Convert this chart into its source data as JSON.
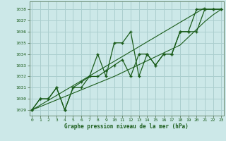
{
  "title": "Graphe pression niveau de la mer (hPa)",
  "xlabel": "Graphe pression niveau de la mer (hPa)",
  "background_color": "#cce8e8",
  "grid_color": "#aacece",
  "line_color": "#1a5c1a",
  "x_values": [
    0,
    1,
    2,
    3,
    4,
    5,
    6,
    7,
    8,
    9,
    10,
    11,
    12,
    13,
    14,
    15,
    16,
    17,
    18,
    19,
    20,
    21,
    22,
    23
  ],
  "series1": [
    1029.0,
    1030.0,
    1030.0,
    1031.0,
    1029.0,
    1031.0,
    1031.0,
    1032.0,
    1034.0,
    1032.0,
    1035.0,
    1035.0,
    1036.0,
    1032.0,
    1034.0,
    1033.0,
    1034.0,
    1034.0,
    1036.0,
    1036.0,
    1038.0,
    1038.0,
    1038.0,
    1038.0
  ],
  "series2": [
    1029.0,
    1030.0,
    1030.0,
    1031.0,
    1029.0,
    1031.0,
    1031.5,
    1032.0,
    1032.0,
    1032.5,
    1033.0,
    1033.5,
    1032.0,
    1034.0,
    1034.0,
    1033.0,
    1034.0,
    1034.0,
    1036.0,
    1036.0,
    1036.0,
    1038.0,
    1038.0,
    1038.0
  ],
  "trend1": [
    1029.0,
    1029.43,
    1029.87,
    1030.3,
    1030.74,
    1031.17,
    1031.61,
    1032.04,
    1032.48,
    1032.91,
    1033.35,
    1033.78,
    1034.22,
    1034.65,
    1035.09,
    1035.52,
    1035.96,
    1036.39,
    1036.83,
    1037.26,
    1037.7,
    1038.13,
    1038.0,
    1038.0
  ],
  "trend2": [
    1029.0,
    1029.3,
    1029.6,
    1029.9,
    1030.2,
    1030.5,
    1030.8,
    1031.1,
    1031.4,
    1031.7,
    1032.0,
    1032.35,
    1032.7,
    1033.05,
    1033.4,
    1033.75,
    1034.1,
    1034.45,
    1034.8,
    1035.5,
    1036.2,
    1036.9,
    1037.5,
    1038.0
  ],
  "ylim": [
    1028.5,
    1038.7
  ],
  "yticks": [
    1029,
    1030,
    1031,
    1032,
    1033,
    1034,
    1035,
    1036,
    1037,
    1038
  ],
  "xticks": [
    0,
    1,
    2,
    3,
    4,
    5,
    6,
    7,
    8,
    9,
    10,
    11,
    12,
    13,
    14,
    15,
    16,
    17,
    18,
    19,
    20,
    21,
    22,
    23
  ],
  "xlim": [
    -0.3,
    23.3
  ]
}
